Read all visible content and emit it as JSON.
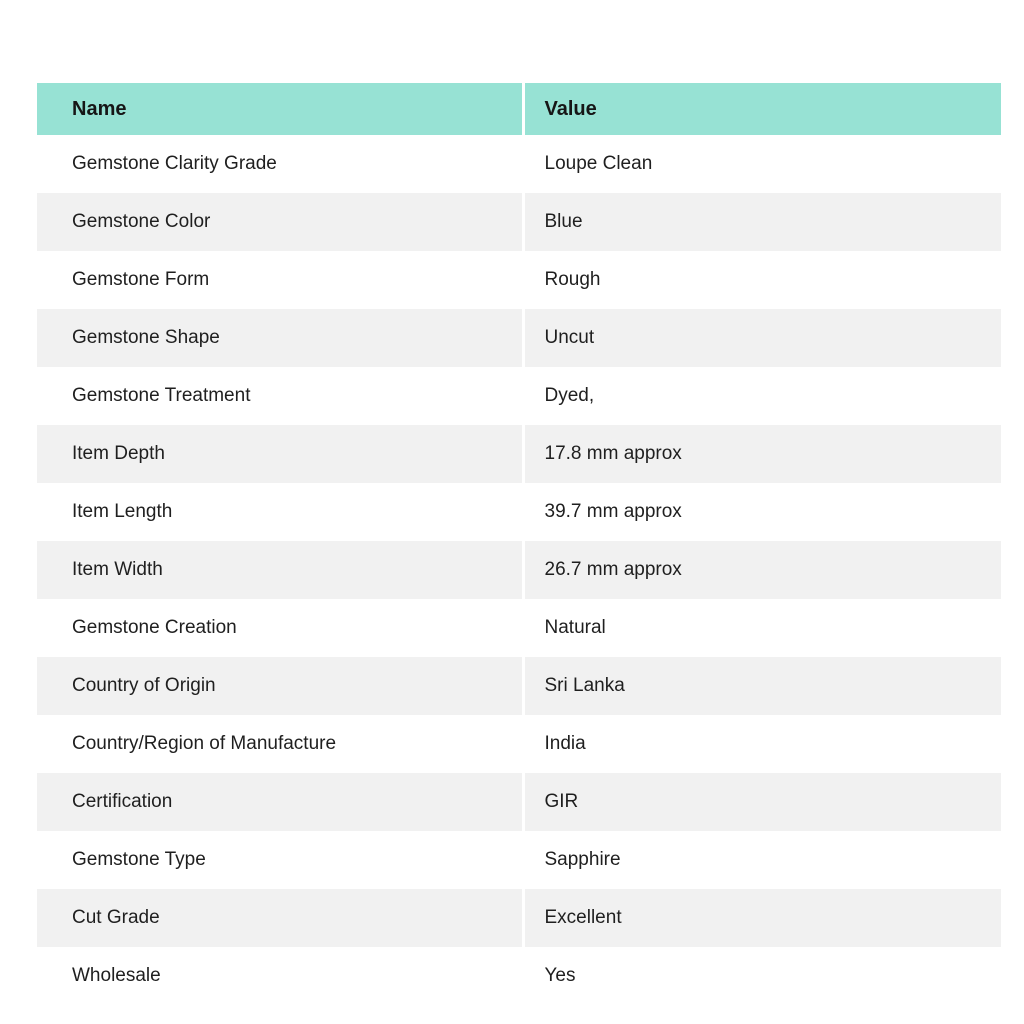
{
  "colors": {
    "header_bg": "#97e2d4",
    "row_alt_bg": "#f1f1f1",
    "row_bg": "#ffffff",
    "text": "#1f1f1f",
    "divider": "#ffffff"
  },
  "table": {
    "headers": [
      {
        "label": "Name"
      },
      {
        "label": "Value"
      }
    ],
    "rows": [
      {
        "name": "Gemstone Clarity Grade",
        "value": "Loupe Clean"
      },
      {
        "name": "Gemstone Color",
        "value": "Blue"
      },
      {
        "name": "Gemstone Form",
        "value": "Rough"
      },
      {
        "name": "Gemstone Shape",
        "value": "Uncut"
      },
      {
        "name": "Gemstone Treatment",
        "value": "Dyed,"
      },
      {
        "name": "Item Depth",
        "value": "17.8 mm approx"
      },
      {
        "name": "Item Length",
        "value": "39.7 mm approx"
      },
      {
        "name": "Item Width",
        "value": "26.7 mm approx"
      },
      {
        "name": "Gemstone Creation",
        "value": "Natural"
      },
      {
        "name": "Country of Origin",
        "value": "Sri Lanka"
      },
      {
        "name": "Country/Region of Manufacture",
        "value": "India"
      },
      {
        "name": "Certification",
        "value": "GIR"
      },
      {
        "name": "Gemstone Type",
        "value": "Sapphire"
      },
      {
        "name": "Cut Grade",
        "value": "Excellent"
      },
      {
        "name": "Wholesale",
        "value": "Yes"
      }
    ]
  }
}
